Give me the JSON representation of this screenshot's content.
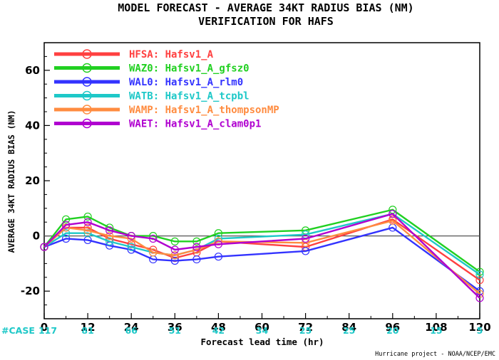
{
  "chart_data": {
    "type": "line",
    "title": "MODEL FORECAST - AVERAGE 34KT RADIUS BIAS (NM)",
    "subtitle": "VERIFICATION FOR HAFS",
    "xlabel": "Forecast lead time (hr)",
    "ylabel": "AVERAGE 34KT RADIUS BIAS (NM)",
    "x_ticks": [
      0,
      12,
      24,
      36,
      48,
      60,
      72,
      84,
      96,
      108,
      120
    ],
    "y_ticks": [
      -20,
      0,
      20,
      40,
      60
    ],
    "xlim": [
      0,
      120
    ],
    "ylim": [
      -30,
      70
    ],
    "zero_line": true,
    "grid": false,
    "legend_position": "top-left",
    "cases_label": "#CASE",
    "cases": [
      "117",
      "81",
      "66",
      "51",
      "42",
      "34",
      "25",
      "25",
      "20",
      "15",
      "5"
    ],
    "credit": "Hurricane project - NOAA/NCEP/EMC",
    "series": [
      {
        "name": "HFSA: Hafsv1_A",
        "color": "#ff4040",
        "x": [
          0,
          6,
          12,
          18,
          24,
          30,
          36,
          42,
          48,
          72,
          96,
          120
        ],
        "y": [
          -4,
          3,
          3,
          -1,
          -3,
          -5,
          -8,
          -6,
          -2,
          -4,
          6,
          -16
        ]
      },
      {
        "name": "WAZ0: Hafsv1_A_gfsz0",
        "color": "#21d021",
        "x": [
          0,
          6,
          12,
          18,
          24,
          30,
          36,
          42,
          48,
          72,
          96,
          120
        ],
        "y": [
          -4,
          6,
          7,
          3,
          0,
          0,
          -2,
          -2,
          1,
          2,
          9.5,
          -13
        ]
      },
      {
        "name": "WAL0: Hafsv1_A_rlm0",
        "color": "#3333ff",
        "x": [
          0,
          6,
          12,
          18,
          24,
          30,
          36,
          42,
          48,
          72,
          96,
          120
        ],
        "y": [
          -4,
          -1,
          -1.5,
          -3.5,
          -5,
          -8.5,
          -9,
          -8.5,
          -7.5,
          -5.5,
          3,
          -20
        ]
      },
      {
        "name": "WATB: Hafsv1_A_tcpbl",
        "color": "#1ec8c8",
        "x": [
          0,
          6,
          12,
          18,
          24,
          30,
          36,
          42,
          48,
          72,
          96,
          120
        ],
        "y": [
          -4,
          1,
          1,
          -2,
          -4,
          -6,
          -7,
          -5,
          -1,
          0.5,
          8,
          -14
        ]
      },
      {
        "name": "WAMP: Hafsv1_A_thompsonMP",
        "color": "#ff8c40",
        "x": [
          0,
          6,
          12,
          18,
          24,
          30,
          36,
          42,
          48,
          72,
          96,
          120
        ],
        "y": [
          -4,
          3,
          2,
          0,
          -1,
          -6,
          -7,
          -5,
          -2,
          -2.5,
          5.5,
          -21
        ]
      },
      {
        "name": "WAET: Hafsv1_A_clam0p1",
        "color": "#b000d0",
        "x": [
          0,
          6,
          12,
          18,
          24,
          30,
          36,
          42,
          48,
          72,
          96,
          120
        ],
        "y": [
          -4,
          4,
          5,
          2,
          0,
          -1,
          -5,
          -4,
          -3,
          -1,
          8,
          -22.5
        ]
      }
    ]
  }
}
